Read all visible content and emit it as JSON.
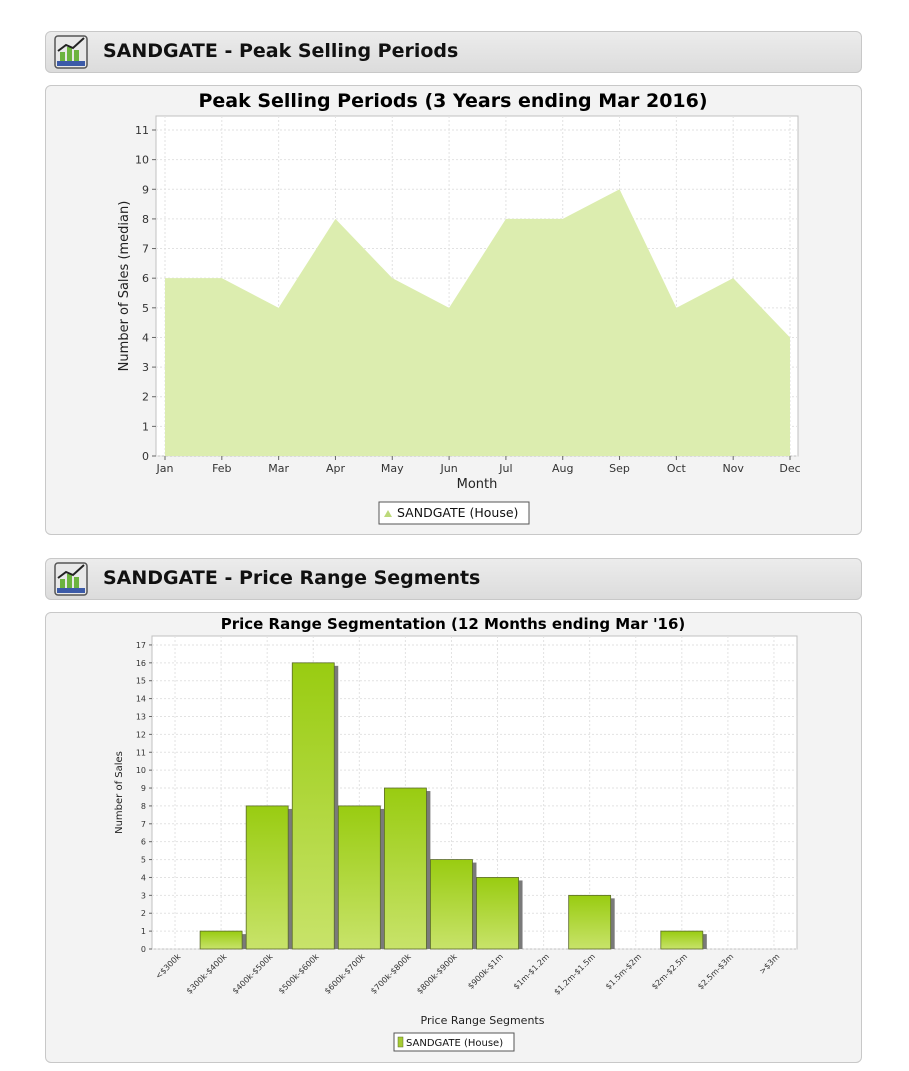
{
  "sections": [
    {
      "title": "SANDGATE - Peak Selling Periods",
      "icon": "chart-icon"
    },
    {
      "title": "SANDGATE - Price Range Segments",
      "icon": "chart-icon"
    }
  ],
  "chart_data": [
    {
      "type": "area",
      "title": "Peak Selling Periods (3 Years ending Mar 2016)",
      "xlabel": "Month",
      "ylabel": "Number of Sales (median)",
      "categories": [
        "Jan",
        "Feb",
        "Mar",
        "Apr",
        "May",
        "Jun",
        "Jul",
        "Aug",
        "Sep",
        "Oct",
        "Nov",
        "Dec"
      ],
      "series": [
        {
          "name": "SANDGATE (House)",
          "values": [
            6,
            6,
            5,
            8,
            6,
            5,
            8,
            8,
            9,
            5,
            6,
            4
          ]
        }
      ],
      "ylim": [
        0,
        11
      ],
      "yticks": [
        "0",
        "1",
        "2",
        "3",
        "4",
        "5",
        "6",
        "7",
        "8",
        "9",
        "10",
        "11"
      ],
      "grid": true,
      "legend": "bottom-center",
      "colors": {
        "fill": "#dcedaf",
        "legend_marker": "#bcd97a"
      }
    },
    {
      "type": "bar",
      "title": "Price Range Segmentation (12 Months ending Mar '16)",
      "xlabel": "Price Range Segments",
      "ylabel": "Number of Sales",
      "categories": [
        "<$300k",
        "$300k-$400k",
        "$400k-$500k",
        "$500k-$600k",
        "$600k-$700k",
        "$700k-$800k",
        "$800k-$900k",
        "$900k-$1m",
        "$1m-$1.2m",
        "$1.2m-$1.5m",
        "$1.5m-$2m",
        "$2m-$2.5m",
        "$2.5m-$3m",
        ">$3m"
      ],
      "series": [
        {
          "name": "SANDGATE (House)",
          "values": [
            0,
            1,
            8,
            16,
            8,
            9,
            5,
            4,
            0,
            3,
            0,
            1,
            0,
            0
          ]
        }
      ],
      "ylim": [
        0,
        17.5
      ],
      "yticks": [
        "0",
        "1",
        "2",
        "3",
        "4",
        "5",
        "6",
        "7",
        "8",
        "9",
        "10",
        "11",
        "12",
        "13",
        "14",
        "15",
        "16",
        "17"
      ],
      "grid": true,
      "legend": "bottom-center",
      "colors": {
        "bar_top": "#99cc11",
        "bar_bottom": "#c8e36a",
        "shadow": "#7a7a7a",
        "legend_marker": "#a6cc33"
      }
    }
  ]
}
